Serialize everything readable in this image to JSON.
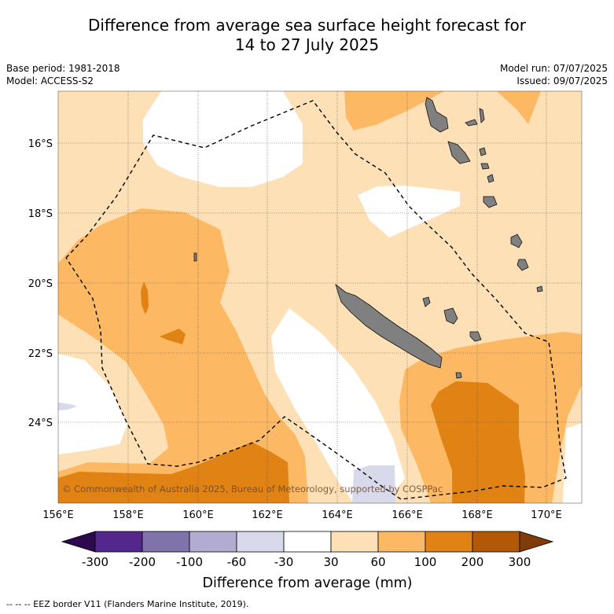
{
  "title_line1": "Difference from average sea surface height forecast for",
  "title_line2": "14 to 27 July 2025",
  "base_period": "Base period: 1981-2018",
  "model": "Model: ACCESS-S2",
  "model_run": "Model run: 07/07/2025",
  "issued": "Issued: 09/07/2025",
  "copyright": "© Commonwealth of Australia 2025, Bureau of Meteorology, supported by COSPPac",
  "footer": "--  --  -- EEZ border V11 (Flanders Marine Institute, 2019).",
  "colors": {
    "land": "#808080",
    "below_m300": "#2d0a4e",
    "m300_m200": "#54278f",
    "m200_m100": "#8073ac",
    "m100_m60": "#b2abd2",
    "m60_m30": "#d8daeb",
    "m30_30": "#ffffff",
    "p30_60": "#fee0b6",
    "p60_100": "#fdb863",
    "p100_200": "#e08214",
    "p200_300": "#b35806",
    "above_300": "#7f3b08"
  },
  "chart_data": {
    "type": "heatmap",
    "title": "Difference from average sea surface height forecast for 14 to 27 July 2025",
    "xlabel": "",
    "ylabel": "",
    "x_ticks": [
      "156°E",
      "158°E",
      "160°E",
      "162°E",
      "164°E",
      "166°E",
      "168°E",
      "170°E"
    ],
    "y_ticks": [
      "16°S",
      "18°S",
      "20°S",
      "22°S",
      "24°S"
    ],
    "xlim": [
      156,
      171
    ],
    "ylim_south": [
      14.5,
      26.3
    ],
    "grid": true,
    "colorbar": {
      "label": "Difference from average (mm)",
      "ticks": [
        "-300",
        "-200",
        "-100",
        "-60",
        "-30",
        "30",
        "60",
        "100",
        "200",
        "300"
      ],
      "extend": "both"
    },
    "legend": "EEZ border (dashed line)"
  }
}
